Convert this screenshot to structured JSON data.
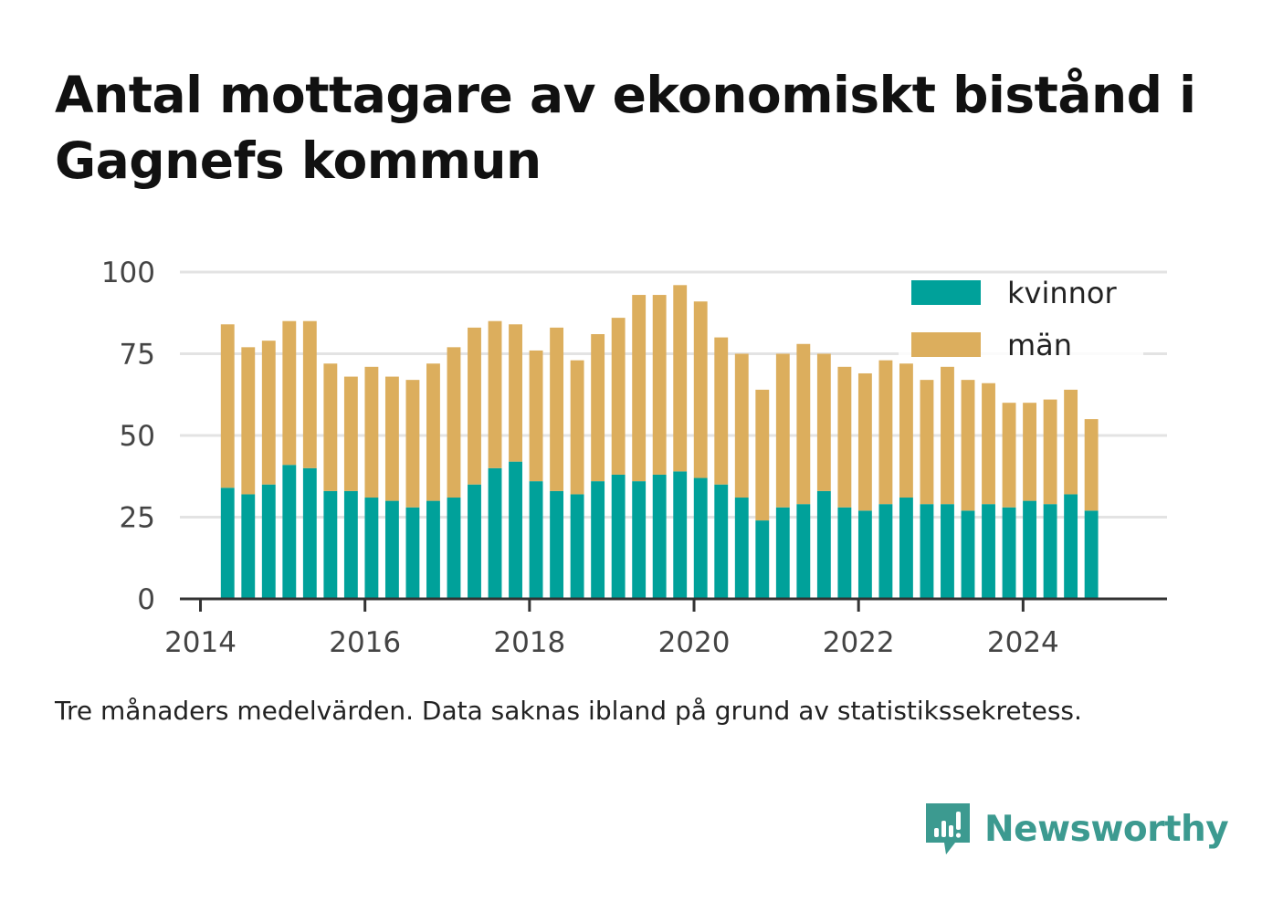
{
  "title": "Antal mottagare av ekonomiskt bistånd i Gagnefs kommun",
  "caption": "Tre månaders medelvärden. Data saknas ibland på grund av statistikssekretess.",
  "brand": {
    "name": "Newsworthy",
    "icon": "newsworthy-logo-icon",
    "color": "#3c9a90"
  },
  "chart_data": {
    "type": "bar",
    "stacked": true,
    "title": "Antal mottagare av ekonomiskt bistånd i Gagnefs kommun",
    "xlabel": "",
    "ylabel": "",
    "ylim": [
      0,
      100
    ],
    "yticks": [
      0,
      25,
      50,
      75,
      100
    ],
    "xlim": [
      2013.75,
      2025.75
    ],
    "xticks": [
      2014,
      2016,
      2018,
      2020,
      2022,
      2024
    ],
    "x_tick_labels": [
      "2014",
      "2016",
      "2018",
      "2020",
      "2022",
      "2024"
    ],
    "grid": "horizontal",
    "legend_position": "top-right",
    "x": [
      2014.33,
      2014.58,
      2014.83,
      2015.08,
      2015.33,
      2015.58,
      2015.83,
      2016.08,
      2016.33,
      2016.58,
      2016.83,
      2017.08,
      2017.33,
      2017.58,
      2017.83,
      2018.08,
      2018.33,
      2018.58,
      2018.83,
      2019.08,
      2019.33,
      2019.58,
      2019.83,
      2020.08,
      2020.33,
      2020.58,
      2020.83,
      2021.08,
      2021.33,
      2021.58,
      2021.83,
      2022.08,
      2022.33,
      2022.58,
      2022.83,
      2023.08,
      2023.33,
      2023.58,
      2023.83,
      2024.08,
      2024.33,
      2024.58,
      2024.83
    ],
    "series": [
      {
        "name": "kvinnor",
        "color": "#00a19a",
        "values": [
          34,
          32,
          35,
          41,
          40,
          33,
          33,
          31,
          30,
          28,
          30,
          31,
          35,
          40,
          42,
          36,
          33,
          32,
          36,
          38,
          36,
          38,
          39,
          37,
          35,
          31,
          24,
          28,
          29,
          33,
          28,
          27,
          29,
          31,
          29,
          29,
          27,
          29,
          28,
          30,
          29,
          32,
          27
        ]
      },
      {
        "name": "män",
        "color": "#dcae5d",
        "values": [
          50,
          45,
          44,
          44,
          45,
          39,
          35,
          40,
          38,
          39,
          42,
          46,
          48,
          45,
          42,
          40,
          50,
          41,
          45,
          48,
          57,
          55,
          57,
          54,
          45,
          44,
          40,
          47,
          49,
          42,
          43,
          42,
          44,
          41,
          38,
          42,
          40,
          37,
          32,
          30,
          32,
          32,
          28
        ]
      }
    ]
  }
}
